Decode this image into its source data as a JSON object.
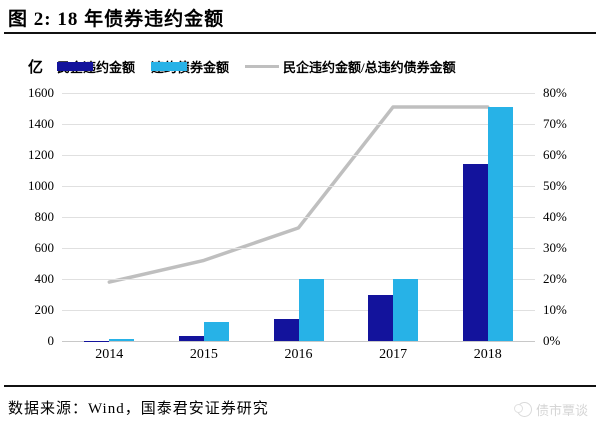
{
  "header": {
    "title": "图 2: 18 年债券违约金额"
  },
  "chart_data": {
    "type": "bar",
    "title": "图 2: 18 年债券违约金额",
    "unit_label": "亿",
    "categories": [
      "2014",
      "2015",
      "2016",
      "2017",
      "2018"
    ],
    "series": [
      {
        "name": "民企违约金额",
        "type": "bar",
        "axis": "left",
        "color": "#13139C",
        "values": [
          2,
          35,
          145,
          300,
          1140
        ]
      },
      {
        "name": "违约债券金额",
        "type": "bar",
        "axis": "left",
        "color": "#27B2E7",
        "values": [
          10,
          125,
          400,
          400,
          1510
        ]
      },
      {
        "name": "民企违约金额/总违约债券金额",
        "type": "line",
        "axis": "right",
        "color": "#BFBFBF",
        "values": [
          19,
          26,
          36.5,
          75.5,
          75.5
        ],
        "unit": "%"
      }
    ],
    "left_axis": {
      "min": 0,
      "max": 1600,
      "step": 200,
      "tick_labels": [
        "0",
        "200",
        "400",
        "600",
        "800",
        "1000",
        "1200",
        "1400",
        "1600"
      ]
    },
    "right_axis": {
      "min": 0,
      "max": 80,
      "step": 10,
      "tick_labels": [
        "0%",
        "10%",
        "20%",
        "30%",
        "40%",
        "50%",
        "60%",
        "70%",
        "80%"
      ]
    },
    "grid": true,
    "legend_position": "top",
    "colors": {
      "gridline": "#E0E0E0",
      "axis_line": "#C8C8C8",
      "text": "#000000"
    }
  },
  "footer": {
    "source": "数据来源：Wind，国泰君安证券研究",
    "watermark": "债市覃谈"
  }
}
